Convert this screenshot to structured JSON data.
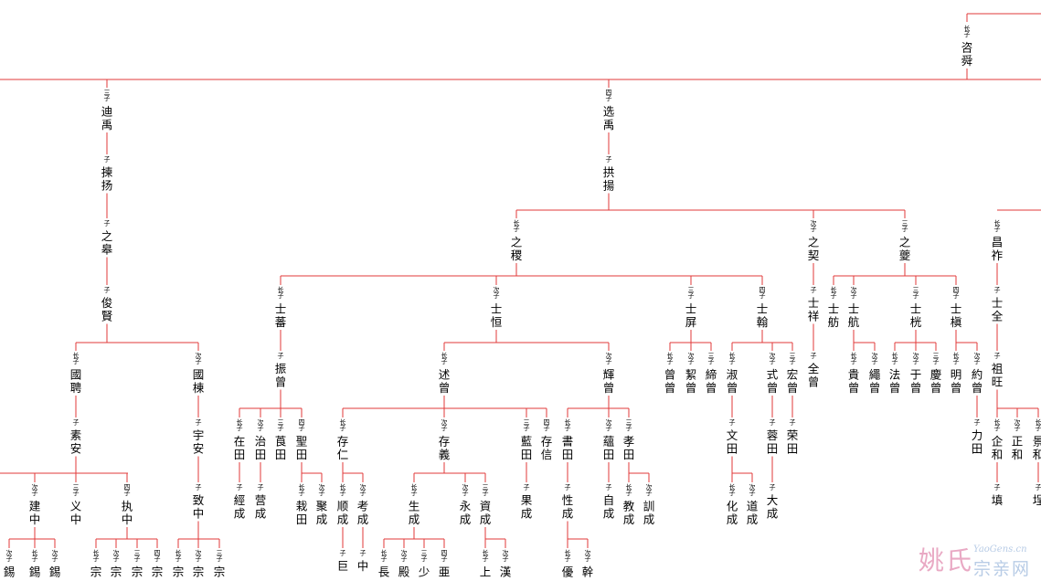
{
  "diagram": {
    "type": "genealogy-tree",
    "line_color": "#e23a3a",
    "text_color": "#000000"
  },
  "nodes": [
    {
      "id": "n1",
      "name": "咨舜",
      "rank": "长子"
    },
    {
      "id": "n2",
      "name": "迪禹",
      "rank": "三子"
    },
    {
      "id": "n3",
      "name": "选禹",
      "rank": "四子"
    },
    {
      "id": "n4",
      "name": "揀扬",
      "rank": "子"
    },
    {
      "id": "n5",
      "name": "拱揚",
      "rank": "子"
    },
    {
      "id": "n6",
      "name": "之皋",
      "rank": "子"
    },
    {
      "id": "n7",
      "name": "之稷",
      "rank": "长子"
    },
    {
      "id": "n8",
      "name": "之契",
      "rank": "次子"
    },
    {
      "id": "n9",
      "name": "之夔",
      "rank": "三子"
    },
    {
      "id": "n10",
      "name": "昌祚",
      "rank": "长子"
    },
    {
      "id": "n11",
      "name": "俊賢",
      "rank": "子"
    },
    {
      "id": "n12",
      "name": "士蕃",
      "rank": "长子"
    },
    {
      "id": "n13",
      "name": "士恒",
      "rank": "次子"
    },
    {
      "id": "n14",
      "name": "士屏",
      "rank": "三子"
    },
    {
      "id": "n15",
      "name": "士翰",
      "rank": "四子"
    },
    {
      "id": "n16",
      "name": "士祥",
      "rank": "子"
    },
    {
      "id": "n17",
      "name": "士舫",
      "rank": "长子"
    },
    {
      "id": "n18",
      "name": "士航",
      "rank": "次子"
    },
    {
      "id": "n19",
      "name": "士桄",
      "rank": "三子"
    },
    {
      "id": "n20",
      "name": "士槇",
      "rank": "四子"
    },
    {
      "id": "n21",
      "name": "士全",
      "rank": "子"
    },
    {
      "id": "n22",
      "name": "國聘",
      "rank": "长子"
    },
    {
      "id": "n23",
      "name": "國棟",
      "rank": "次子"
    },
    {
      "id": "n24",
      "name": "振曾",
      "rank": "子"
    },
    {
      "id": "n25",
      "name": "述曾",
      "rank": "长子"
    },
    {
      "id": "n26",
      "name": "輝曾",
      "rank": "次子"
    },
    {
      "id": "n27",
      "name": "曾曾",
      "rank": "长子"
    },
    {
      "id": "n28",
      "name": "絜曾",
      "rank": "次子"
    },
    {
      "id": "n29",
      "name": "締曾",
      "rank": "三子"
    },
    {
      "id": "n30",
      "name": "淑曾",
      "rank": "长子"
    },
    {
      "id": "n31",
      "name": "式曾",
      "rank": "次子"
    },
    {
      "id": "n32",
      "name": "宏曾",
      "rank": "三子"
    },
    {
      "id": "n33",
      "name": "全曾",
      "rank": "子"
    },
    {
      "id": "n34",
      "name": "貴曾",
      "rank": "长子"
    },
    {
      "id": "n35",
      "name": "繩曾",
      "rank": "次子"
    },
    {
      "id": "n36",
      "name": "法曾",
      "rank": "长子"
    },
    {
      "id": "n37",
      "name": "于曾",
      "rank": "次子"
    },
    {
      "id": "n38",
      "name": "慶曾",
      "rank": "三子"
    },
    {
      "id": "n39",
      "name": "明曾",
      "rank": "长子"
    },
    {
      "id": "n40",
      "name": "約曾",
      "rank": "次子"
    },
    {
      "id": "n41",
      "name": "祖旺",
      "rank": "子"
    },
    {
      "id": "n42",
      "name": "素安",
      "rank": "子"
    },
    {
      "id": "n43",
      "name": "宇安",
      "rank": "子"
    },
    {
      "id": "n44",
      "name": "在田",
      "rank": "长子"
    },
    {
      "id": "n45",
      "name": "治田",
      "rank": "次子"
    },
    {
      "id": "n46",
      "name": "莨田",
      "rank": "三子"
    },
    {
      "id": "n47",
      "name": "聖田",
      "rank": "四子"
    },
    {
      "id": "n48",
      "name": "存仁",
      "rank": "长子"
    },
    {
      "id": "n49",
      "name": "存義",
      "rank": "次子"
    },
    {
      "id": "n50",
      "name": "藍田",
      "rank": "三子"
    },
    {
      "id": "n51",
      "name": "存信",
      "rank": "四子"
    },
    {
      "id": "n52",
      "name": "書田",
      "rank": "长子"
    },
    {
      "id": "n53",
      "name": "蘊田",
      "rank": "次子"
    },
    {
      "id": "n54",
      "name": "孝田",
      "rank": "三子"
    },
    {
      "id": "n55",
      "name": "文田",
      "rank": "子"
    },
    {
      "id": "n56",
      "name": "蓉田",
      "rank": "子"
    },
    {
      "id": "n57",
      "name": "荣田",
      "rank": "子"
    },
    {
      "id": "n58",
      "name": "力田",
      "rank": "子"
    },
    {
      "id": "n59",
      "name": "企和",
      "rank": "长子"
    },
    {
      "id": "n60",
      "name": "正和",
      "rank": "次子"
    },
    {
      "id": "n61",
      "name": "景和",
      "rank": "长子"
    },
    {
      "id": "n62",
      "name": "建中",
      "rank": "次子"
    },
    {
      "id": "n63",
      "name": "义中",
      "rank": "三子"
    },
    {
      "id": "n64",
      "name": "执中",
      "rank": "四子"
    },
    {
      "id": "n65",
      "name": "致中",
      "rank": "子"
    },
    {
      "id": "n66",
      "name": "經成",
      "rank": "子"
    },
    {
      "id": "n67",
      "name": "营成",
      "rank": "子"
    },
    {
      "id": "n68",
      "name": "栽田",
      "rank": "长子"
    },
    {
      "id": "n69",
      "name": "聚成",
      "rank": "次子"
    },
    {
      "id": "n70",
      "name": "顺成",
      "rank": "长子"
    },
    {
      "id": "n71",
      "name": "考成",
      "rank": "次子"
    },
    {
      "id": "n72",
      "name": "生成",
      "rank": "长子"
    },
    {
      "id": "n73",
      "name": "永成",
      "rank": "次子"
    },
    {
      "id": "n74",
      "name": "資成",
      "rank": "三子"
    },
    {
      "id": "n75",
      "name": "果成",
      "rank": "子"
    },
    {
      "id": "n76",
      "name": "性成",
      "rank": "子"
    },
    {
      "id": "n77",
      "name": "自成",
      "rank": "子"
    },
    {
      "id": "n78",
      "name": "教成",
      "rank": "长子"
    },
    {
      "id": "n79",
      "name": "訓成",
      "rank": "次子"
    },
    {
      "id": "n80",
      "name": "化成",
      "rank": "长子"
    },
    {
      "id": "n81",
      "name": "道成",
      "rank": "次子"
    },
    {
      "id": "n82",
      "name": "大成",
      "rank": "子"
    },
    {
      "id": "n83",
      "name": "填",
      "rank": "子"
    },
    {
      "id": "n84",
      "name": "埕",
      "rank": "子"
    },
    {
      "id": "n85",
      "name": "錫",
      "rank": "次子"
    },
    {
      "id": "n86",
      "name": "錫",
      "rank": "长子"
    },
    {
      "id": "n87",
      "name": "錫",
      "rank": "次子"
    },
    {
      "id": "n88",
      "name": "宗",
      "rank": "长子"
    },
    {
      "id": "n89",
      "name": "宗",
      "rank": "次子"
    },
    {
      "id": "n90",
      "name": "宗",
      "rank": "三子"
    },
    {
      "id": "n91",
      "name": "宗",
      "rank": "四子"
    },
    {
      "id": "n92",
      "name": "宗",
      "rank": "长子"
    },
    {
      "id": "n93",
      "name": "宗",
      "rank": "次子"
    },
    {
      "id": "n94",
      "name": "宗",
      "rank": "三子"
    },
    {
      "id": "n95",
      "name": "巨",
      "rank": "子"
    },
    {
      "id": "n96",
      "name": "中",
      "rank": "子"
    },
    {
      "id": "n97",
      "name": "長",
      "rank": "长子"
    },
    {
      "id": "n98",
      "name": "殿",
      "rank": "次子"
    },
    {
      "id": "n99",
      "name": "少",
      "rank": "三子"
    },
    {
      "id": "n100",
      "name": "亜",
      "rank": "四子"
    },
    {
      "id": "n101",
      "name": "上",
      "rank": "长子"
    },
    {
      "id": "n102",
      "name": "漢",
      "rank": "次子"
    },
    {
      "id": "n103",
      "name": "優",
      "rank": "长子"
    },
    {
      "id": "n104",
      "name": "幹",
      "rank": "次子"
    }
  ],
  "watermark": {
    "brand": "姚氏",
    "domain": "YaoGens.cn",
    "site": "宗亲网"
  }
}
